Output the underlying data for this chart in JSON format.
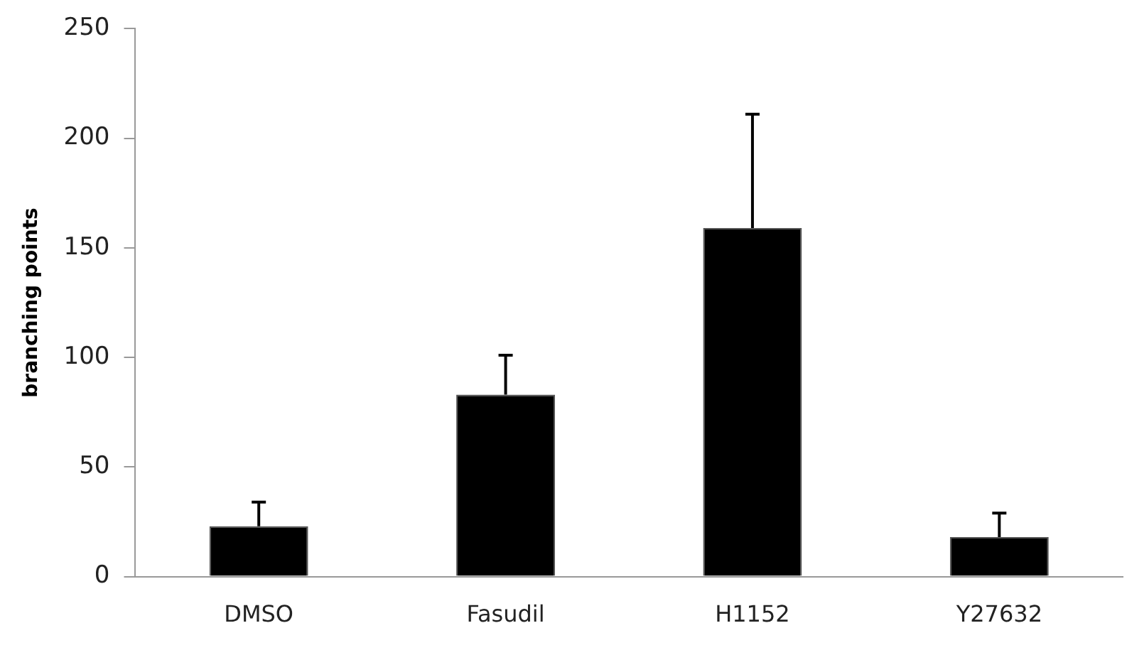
{
  "chart_data": {
    "type": "bar",
    "ylabel": "branching points",
    "categories": [
      "DMSO",
      "Fasudil",
      "H1152",
      "Y27632"
    ],
    "values": [
      23,
      83,
      159,
      18
    ],
    "errors": [
      [
        23,
        34
      ],
      [
        83,
        101
      ],
      [
        159,
        211
      ],
      [
        18,
        29
      ]
    ],
    "color": "#000000",
    "ylim": [
      0,
      250
    ],
    "yticks": [
      0,
      50,
      100,
      150,
      200,
      250
    ],
    "grid": false,
    "legend": false
  }
}
